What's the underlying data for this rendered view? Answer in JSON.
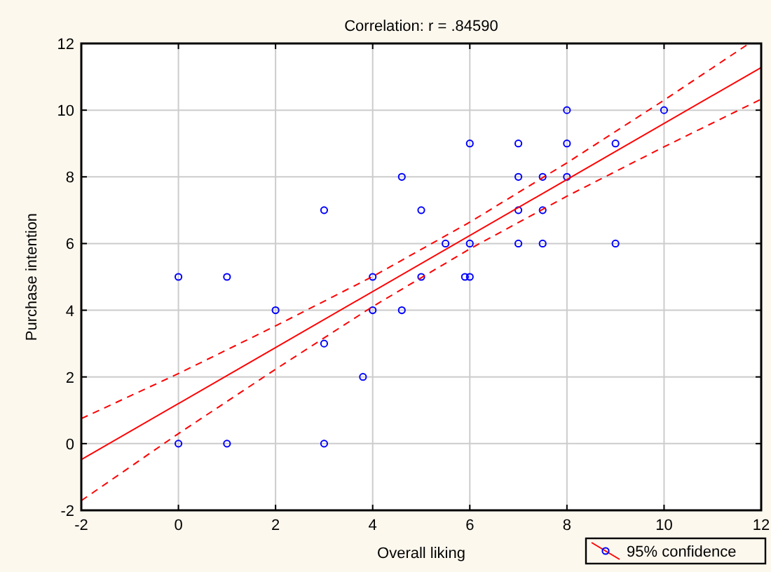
{
  "chart_data": {
    "type": "scatter",
    "title": "Correlation: r = .84590",
    "xlabel": "Overall liking",
    "ylabel": "Purchase intention",
    "xlim": [
      -2,
      12
    ],
    "xticks": [
      -2,
      0,
      2,
      4,
      6,
      8,
      10,
      12
    ],
    "ylim": [
      -2,
      12
    ],
    "yticks": [
      -2,
      0,
      2,
      4,
      6,
      8,
      10,
      12
    ],
    "grid": true,
    "legend": "bottom right",
    "series": [
      {
        "color": "#0000ff",
        "marker": "circle",
        "x": [
          0,
          1,
          4,
          5,
          5.9,
          6,
          0,
          1,
          3,
          2,
          4,
          4.6,
          3,
          5,
          7,
          7.5,
          3,
          3.8,
          4.6,
          7,
          7.5,
          8,
          5.5,
          6,
          7,
          7.5,
          9,
          6,
          7,
          8,
          9,
          8,
          10
        ],
        "values": [
          5,
          5,
          5,
          5,
          5,
          5,
          0,
          0,
          0,
          4,
          4,
          4,
          7,
          7,
          7,
          7,
          3,
          2,
          8,
          8,
          8,
          8,
          6,
          6,
          6,
          6,
          6,
          9,
          9,
          9,
          9,
          10,
          10
        ]
      },
      {
        "type": "line",
        "name": "95% confidence",
        "color": "#ff0000",
        "line_style": "solid",
        "marker": "none",
        "x": [
          -2,
          12
        ],
        "values": [
          -0.48,
          11.28
        ]
      },
      {
        "type": "line",
        "color": "#ff0000",
        "line_style": "dashed",
        "marker": "none",
        "x": [
          -2,
          0,
          2,
          4,
          6,
          8,
          10,
          11.7
        ],
        "values": [
          0.75,
          2.1,
          3.53,
          5.01,
          6.64,
          8.42,
          10.3,
          11.95
        ]
      },
      {
        "type": "line",
        "color": "#ff0000",
        "line_style": "dashed",
        "marker": "none",
        "x": [
          -2,
          0,
          2,
          4,
          6,
          8,
          10,
          12
        ],
        "values": [
          -1.71,
          0.3,
          2.23,
          4.11,
          5.84,
          7.42,
          8.9,
          10.33
        ]
      }
    ]
  }
}
